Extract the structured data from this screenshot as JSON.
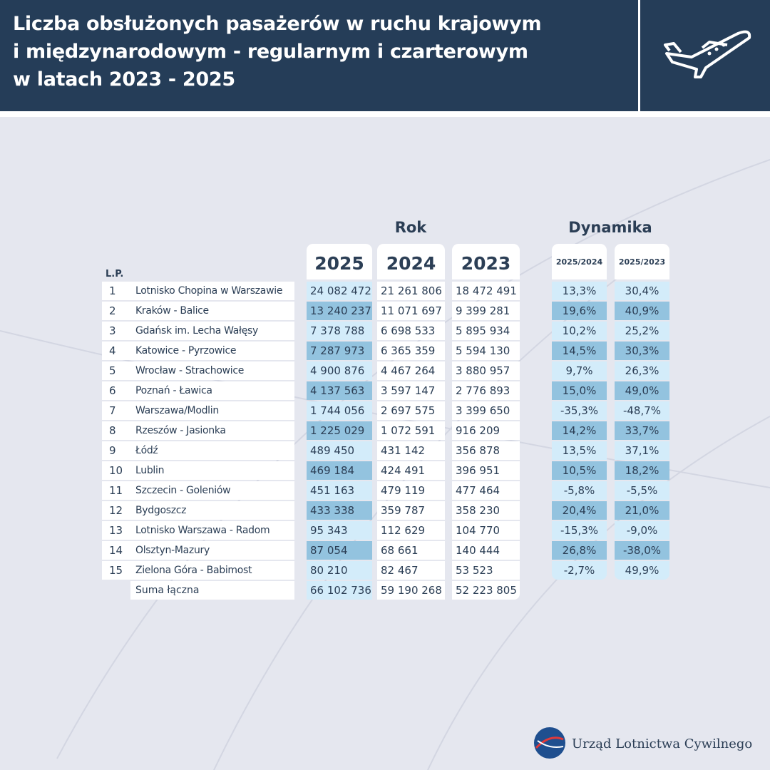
{
  "header": {
    "title": [
      "Liczba obsłużonych pasażerów w ruchu krajowym",
      "i międzynarodowym - regularnym i czarterowym",
      "w latach 2023 - 2025"
    ]
  },
  "table": {
    "group_headers": [
      "Rok",
      "Dynamika"
    ],
    "columns": [
      "L.P.",
      "2025",
      "2024",
      "2023",
      "2025/2024",
      "2025/2023"
    ],
    "rows": [
      [
        "1",
        "Lotnisko Chopina w Warszawie",
        "24 082 472",
        "21 261 806",
        "18 472 491",
        "13,3%",
        "30,4%"
      ],
      [
        "2",
        "Kraków - Balice",
        "13 240 237",
        "11 071 697",
        "9 399 281",
        "19,6%",
        "40,9%"
      ],
      [
        "3",
        "Gdańsk im. Lecha Wałęsy",
        "7 378 788",
        "6 698 533",
        "5 895 934",
        "10,2%",
        "25,2%"
      ],
      [
        "4",
        "Katowice - Pyrzowice",
        "7 287 973",
        "6 365 359",
        "5 594 130",
        "14,5%",
        "30,3%"
      ],
      [
        "5",
        "Wrocław - Strachowice",
        "4 900 876",
        "4 467 264",
        "3 880 957",
        "9,7%",
        "26,3%"
      ],
      [
        "6",
        "Poznań - Ławica",
        "4 137 563",
        "3 597 147",
        "2 776 893",
        "15,0%",
        "49,0%"
      ],
      [
        "7",
        "Warszawa/Modlin",
        "1 744 056",
        "2 697 575",
        "3 399 650",
        "-35,3%",
        "-48,7%"
      ],
      [
        "8",
        "Rzeszów - Jasionka",
        "1 225 029",
        "1 072 591",
        "916 209",
        "14,2%",
        "33,7%"
      ],
      [
        "9",
        "Łódź",
        "489 450",
        "431 142",
        "356 878",
        "13,5%",
        "37,1%"
      ],
      [
        "10",
        "Lublin",
        "469 184",
        "424 491",
        "396 951",
        "10,5%",
        "18,2%"
      ],
      [
        "11",
        "Szczecin - Goleniów",
        "451 163",
        "479 119",
        "477 464",
        "-5,8%",
        "-5,5%"
      ],
      [
        "12",
        "Bydgoszcz",
        "433 338",
        "359 787",
        "358 230",
        "20,4%",
        "21,0%"
      ],
      [
        "13",
        "Lotnisko Warszawa - Radom",
        "95 343",
        "112 629",
        "104 770",
        "-15,3%",
        "-9,0%"
      ],
      [
        "14",
        "Olsztyn-Mazury",
        "87 054",
        "68 661",
        "140 444",
        "26,8%",
        "-38,0%"
      ],
      [
        "15",
        "Zielona Góra - Babimost",
        "80 210",
        "82 467",
        "53 523",
        "-2,7%",
        "49,9%"
      ]
    ],
    "total": [
      "Suma łączna",
      "66 102 736",
      "59 190 268",
      "52 223 805"
    ]
  },
  "footer": {
    "organization": "Urząd Lotnictwa Cywilnego"
  }
}
